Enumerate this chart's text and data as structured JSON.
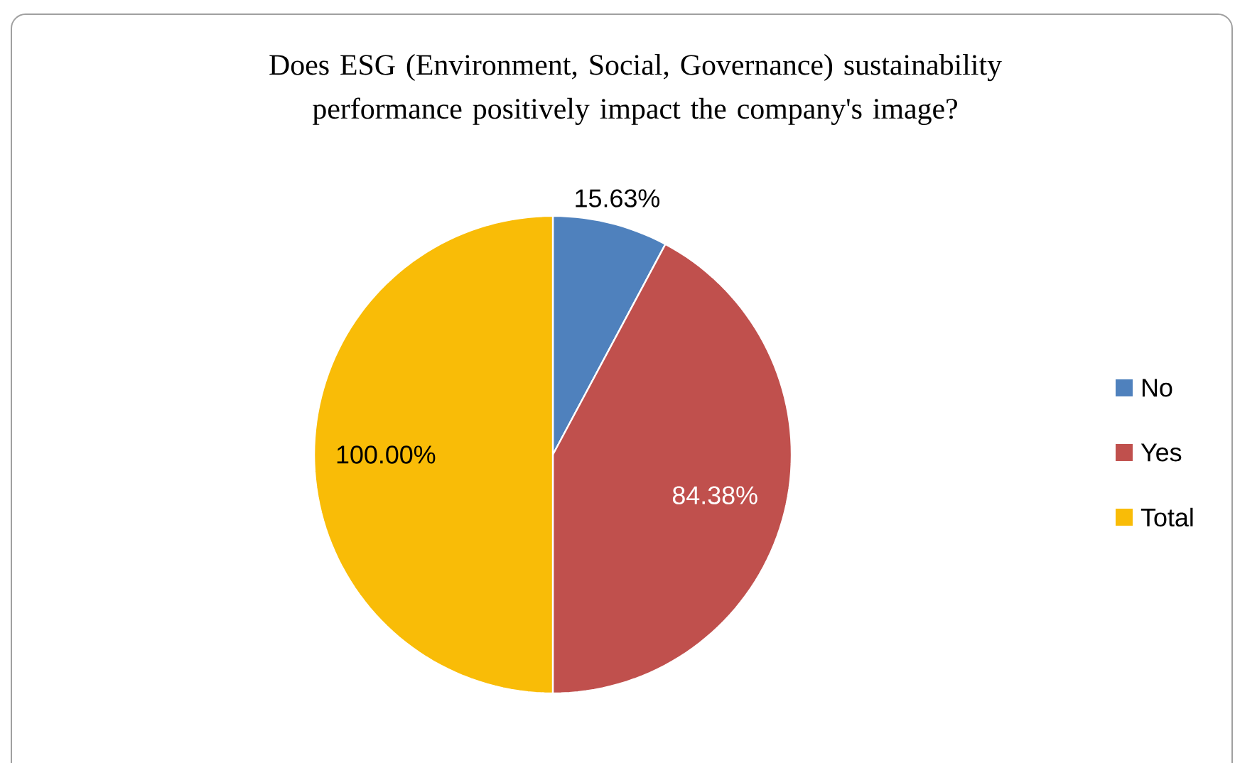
{
  "chart_data": {
    "type": "pie",
    "title": "Does ESG (Environment, Social, Governance) sustainability performance positively impact the company's image?",
    "categories": [
      "No",
      "Yes",
      "Total"
    ],
    "values": [
      15.63,
      84.38,
      100.0
    ],
    "colors": [
      "#4f81bd",
      "#c0504d",
      "#f9bc07"
    ],
    "value_labels": [
      "15.63%",
      "84.38%",
      "100.00%"
    ],
    "legend": "right"
  }
}
